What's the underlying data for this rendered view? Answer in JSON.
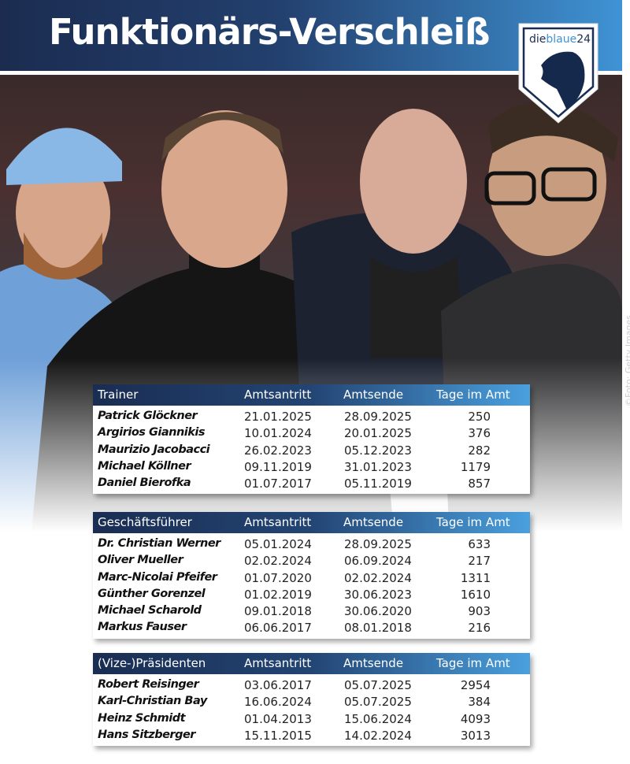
{
  "header": {
    "title": "Funktionärs-Verschleiß"
  },
  "logo": {
    "text_dark": "die",
    "text_light": "blaue",
    "text_num": "24"
  },
  "photo_credit": "©Foto: Getty Images",
  "colors": {
    "navy": "#1b2c50",
    "blue": "#3f93d4"
  },
  "columns": [
    "Amtsantritt",
    "Amtsende",
    "Tage im Amt"
  ],
  "tables": [
    {
      "title": "Trainer",
      "rows": [
        [
          "Patrick Glöckner",
          "21.01.2025",
          "28.09.2025",
          "250"
        ],
        [
          "Argirios Giannikis",
          "10.01.2024",
          "20.01.2025",
          "376"
        ],
        [
          "Maurizio Jacobacci",
          "26.02.2023",
          "05.12.2023",
          "282"
        ],
        [
          "Michael Köllner",
          "09.11.2019",
          "31.01.2023",
          "1179"
        ],
        [
          "Daniel Bierofka",
          "01.07.2017",
          "05.11.2019",
          "857"
        ]
      ]
    },
    {
      "title": "Geschäftsführer",
      "rows": [
        [
          "Dr. Christian Werner",
          "05.01.2024",
          "28.09.2025",
          "633"
        ],
        [
          "Oliver Mueller",
          "02.02.2024",
          "06.09.2024",
          "217"
        ],
        [
          "Marc-Nicolai Pfeifer",
          "01.07.2020",
          "02.02.2024",
          "1311"
        ],
        [
          "Günther Gorenzel",
          "01.02.2019",
          "30.06.2023",
          "1610"
        ],
        [
          "Michael Scharold",
          "09.01.2018",
          "30.06.2020",
          "903"
        ],
        [
          "Markus Fauser",
          "06.06.2017",
          "08.01.2018",
          "216"
        ]
      ]
    },
    {
      "title": "(Vize-)Präsidenten",
      "rows": [
        [
          "Robert Reisinger",
          "03.06.2017",
          "05.07.2025",
          "2954"
        ],
        [
          "Karl-Christian Bay",
          "16.06.2024",
          "05.07.2025",
          "384"
        ],
        [
          "Heinz Schmidt",
          "01.04.2013",
          "15.06.2024",
          "4093"
        ],
        [
          "Hans Sitzberger",
          "15.11.2015",
          "14.02.2024",
          "3013"
        ]
      ]
    }
  ]
}
